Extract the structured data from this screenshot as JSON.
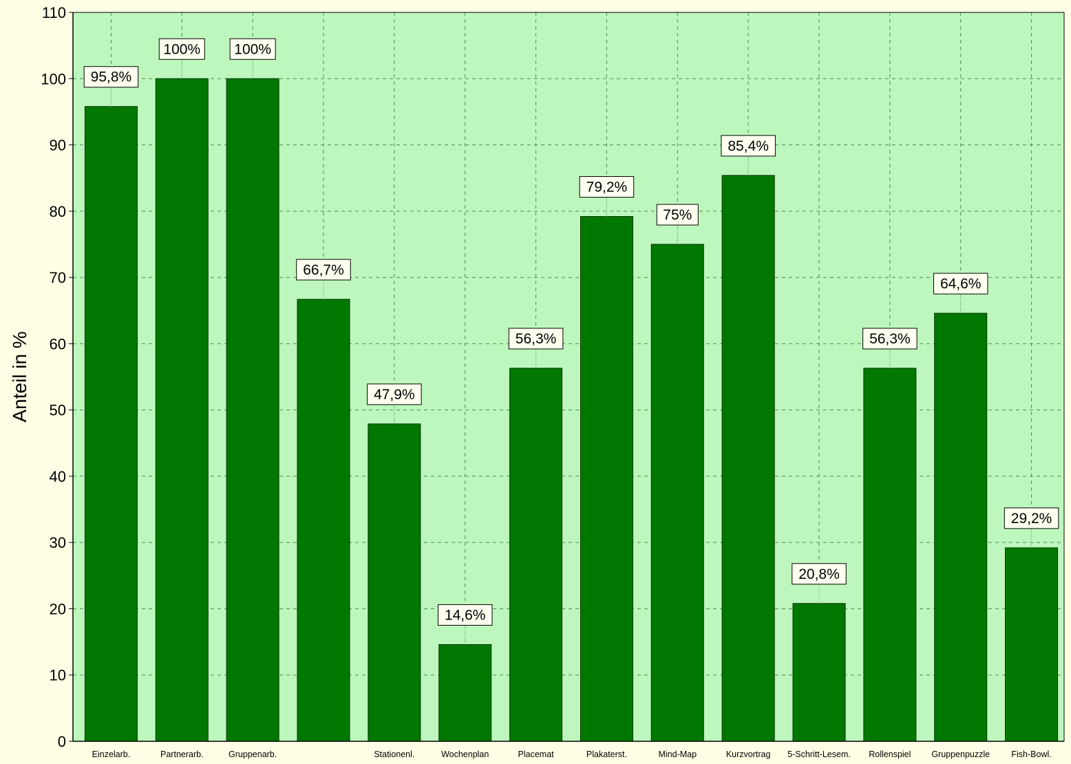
{
  "chart_data": {
    "type": "bar",
    "title": "",
    "xlabel": "",
    "ylabel": "Anteil in %",
    "ylim": [
      0,
      110
    ],
    "yticks": [
      0,
      10,
      20,
      30,
      40,
      50,
      60,
      70,
      80,
      90,
      100,
      110
    ],
    "grid": true,
    "categories": [
      "Einzelarb.",
      "Partnerarb.",
      "Gruppenarb.",
      "",
      "Stationenl.",
      "Wochenplan",
      "Placemat",
      "Plakaterst.",
      "Mind-Map",
      "Kurzvortrag",
      "5-Schritt-Lesem.",
      "Rollenspiel",
      "Gruppenpuzzle",
      "Fish-Bowl."
    ],
    "values": [
      95.8,
      100,
      100,
      66.7,
      47.9,
      14.6,
      56.3,
      79.2,
      75,
      85.4,
      20.8,
      56.3,
      64.6,
      29.2
    ],
    "data_labels": [
      "95,8%",
      "100%",
      "100%",
      "66,7%",
      "47,9%",
      "14,6%",
      "56,3%",
      "79,2%",
      "75%",
      "85,4%",
      "20,8%",
      "56,3%",
      "64,6%",
      "29,2%"
    ],
    "colors": {
      "page_background": "#ffffe6",
      "plot_background": "#bdf7bd",
      "bar_fill": "#007800",
      "grid": "#4c8f4c",
      "label_background": "#fffff0"
    }
  }
}
